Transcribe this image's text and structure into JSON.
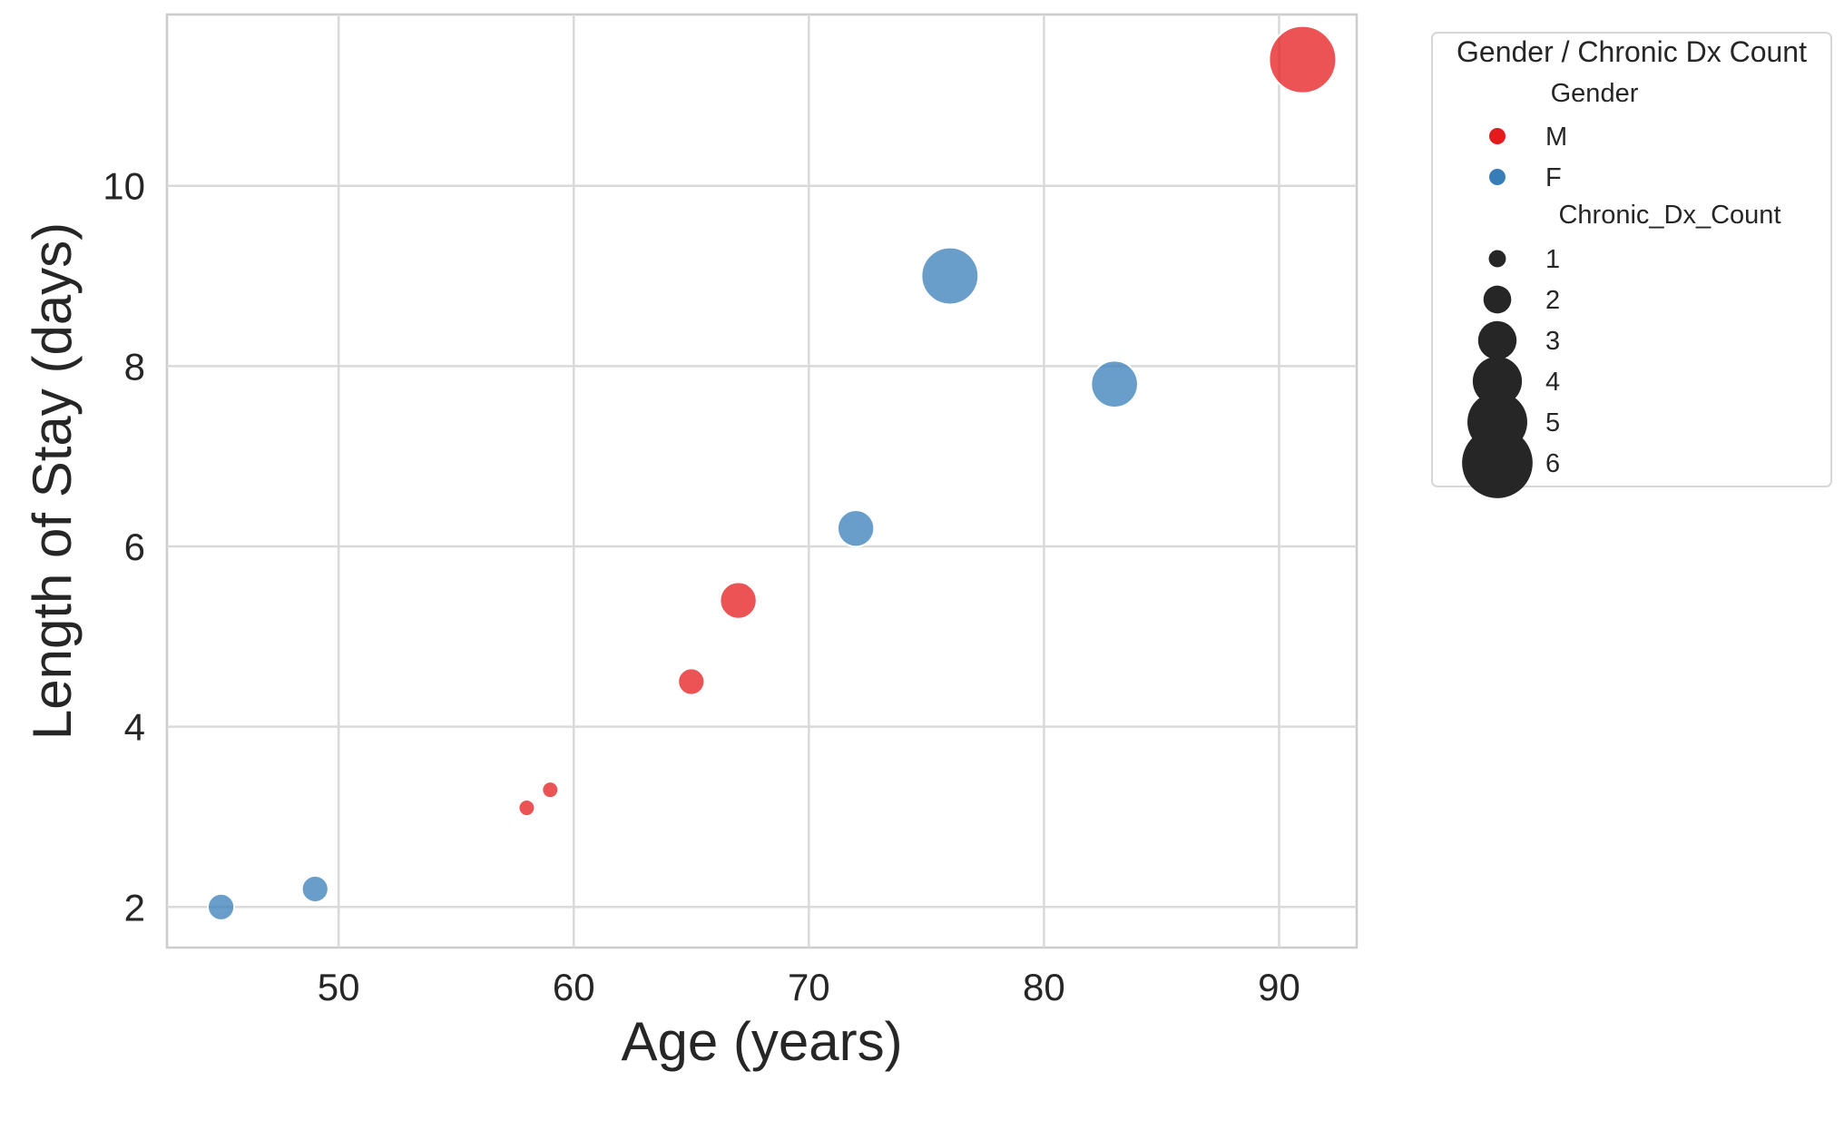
{
  "chart_data": {
    "type": "scatter",
    "xlabel": "Age (years)",
    "ylabel": "Length of Stay (days)",
    "xlim": [
      42.7,
      93.3
    ],
    "ylim": [
      1.55,
      11.9
    ],
    "xticks": [
      50,
      60,
      70,
      80,
      90
    ],
    "yticks": [
      2,
      4,
      6,
      8,
      10
    ],
    "grid": true,
    "legend_position": "outside right, top",
    "colors": {
      "M": "#e41a1c",
      "F": "#377eb8"
    },
    "points": [
      {
        "age": 45,
        "length_of_stay": 2.0,
        "gender": "F",
        "chronic_dx_count": 2
      },
      {
        "age": 49,
        "length_of_stay": 2.2,
        "gender": "F",
        "chronic_dx_count": 2
      },
      {
        "age": 58,
        "length_of_stay": 3.1,
        "gender": "M",
        "chronic_dx_count": 1
      },
      {
        "age": 59,
        "length_of_stay": 3.3,
        "gender": "M",
        "chronic_dx_count": 1
      },
      {
        "age": 65,
        "length_of_stay": 4.5,
        "gender": "M",
        "chronic_dx_count": 2
      },
      {
        "age": 67,
        "length_of_stay": 5.4,
        "gender": "M",
        "chronic_dx_count": 3
      },
      {
        "age": 72,
        "length_of_stay": 6.2,
        "gender": "F",
        "chronic_dx_count": 3
      },
      {
        "age": 76,
        "length_of_stay": 9.0,
        "gender": "F",
        "chronic_dx_count": 5
      },
      {
        "age": 83,
        "length_of_stay": 7.8,
        "gender": "F",
        "chronic_dx_count": 4
      },
      {
        "age": 91,
        "length_of_stay": 11.4,
        "gender": "M",
        "chronic_dx_count": 6
      }
    ],
    "legend": {
      "title": "Gender / Chronic Dx Count",
      "hue_title": "Gender",
      "hue_entries": [
        "M",
        "F"
      ],
      "size_title": "Chronic_Dx_Count",
      "size_entries": [
        "1",
        "2",
        "3",
        "4",
        "5",
        "6"
      ]
    }
  }
}
